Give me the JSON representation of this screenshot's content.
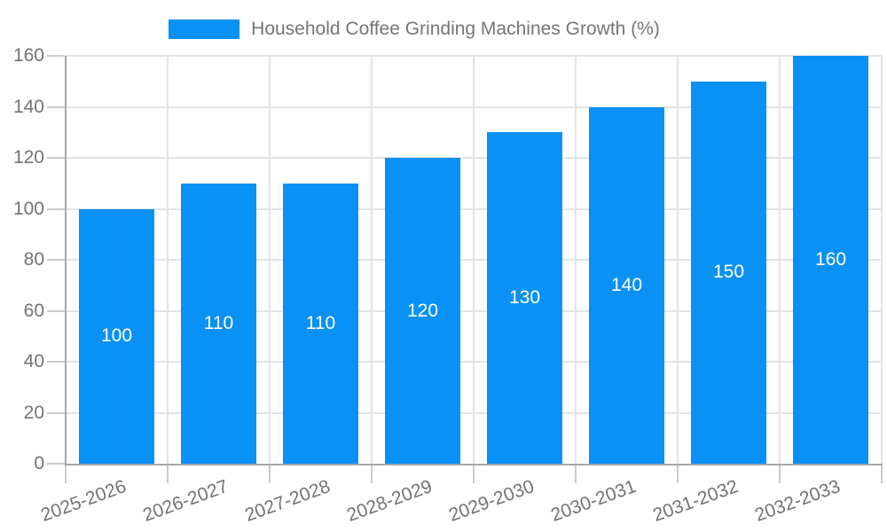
{
  "chart_data": {
    "type": "bar",
    "title": "Household Coffee Grinding Machines Growth (%)",
    "categories": [
      "2025-2026",
      "2026-2027",
      "2027-2028",
      "2028-2029",
      "2029-2030",
      "2030-2031",
      "2031-2032",
      "2032-2033"
    ],
    "values": [
      100,
      110,
      110,
      120,
      130,
      140,
      150,
      160
    ],
    "xlabel": "",
    "ylabel": "",
    "ylim": [
      0,
      160
    ],
    "yticks": [
      0,
      20,
      40,
      60,
      80,
      100,
      120,
      140,
      160
    ],
    "grid": true,
    "legend_position": "top-center",
    "value_labels": "centered-inside-bars"
  },
  "colors": {
    "bar": "#0A91F5",
    "legend_text": "#757575",
    "axis_text": "#737373",
    "grid": "#E4E4E4",
    "axis_line": "#A6A6A6",
    "tick_mark": "#CBCBCB",
    "value_label": "#FFFFFF",
    "background": "#FFFFFF"
  }
}
